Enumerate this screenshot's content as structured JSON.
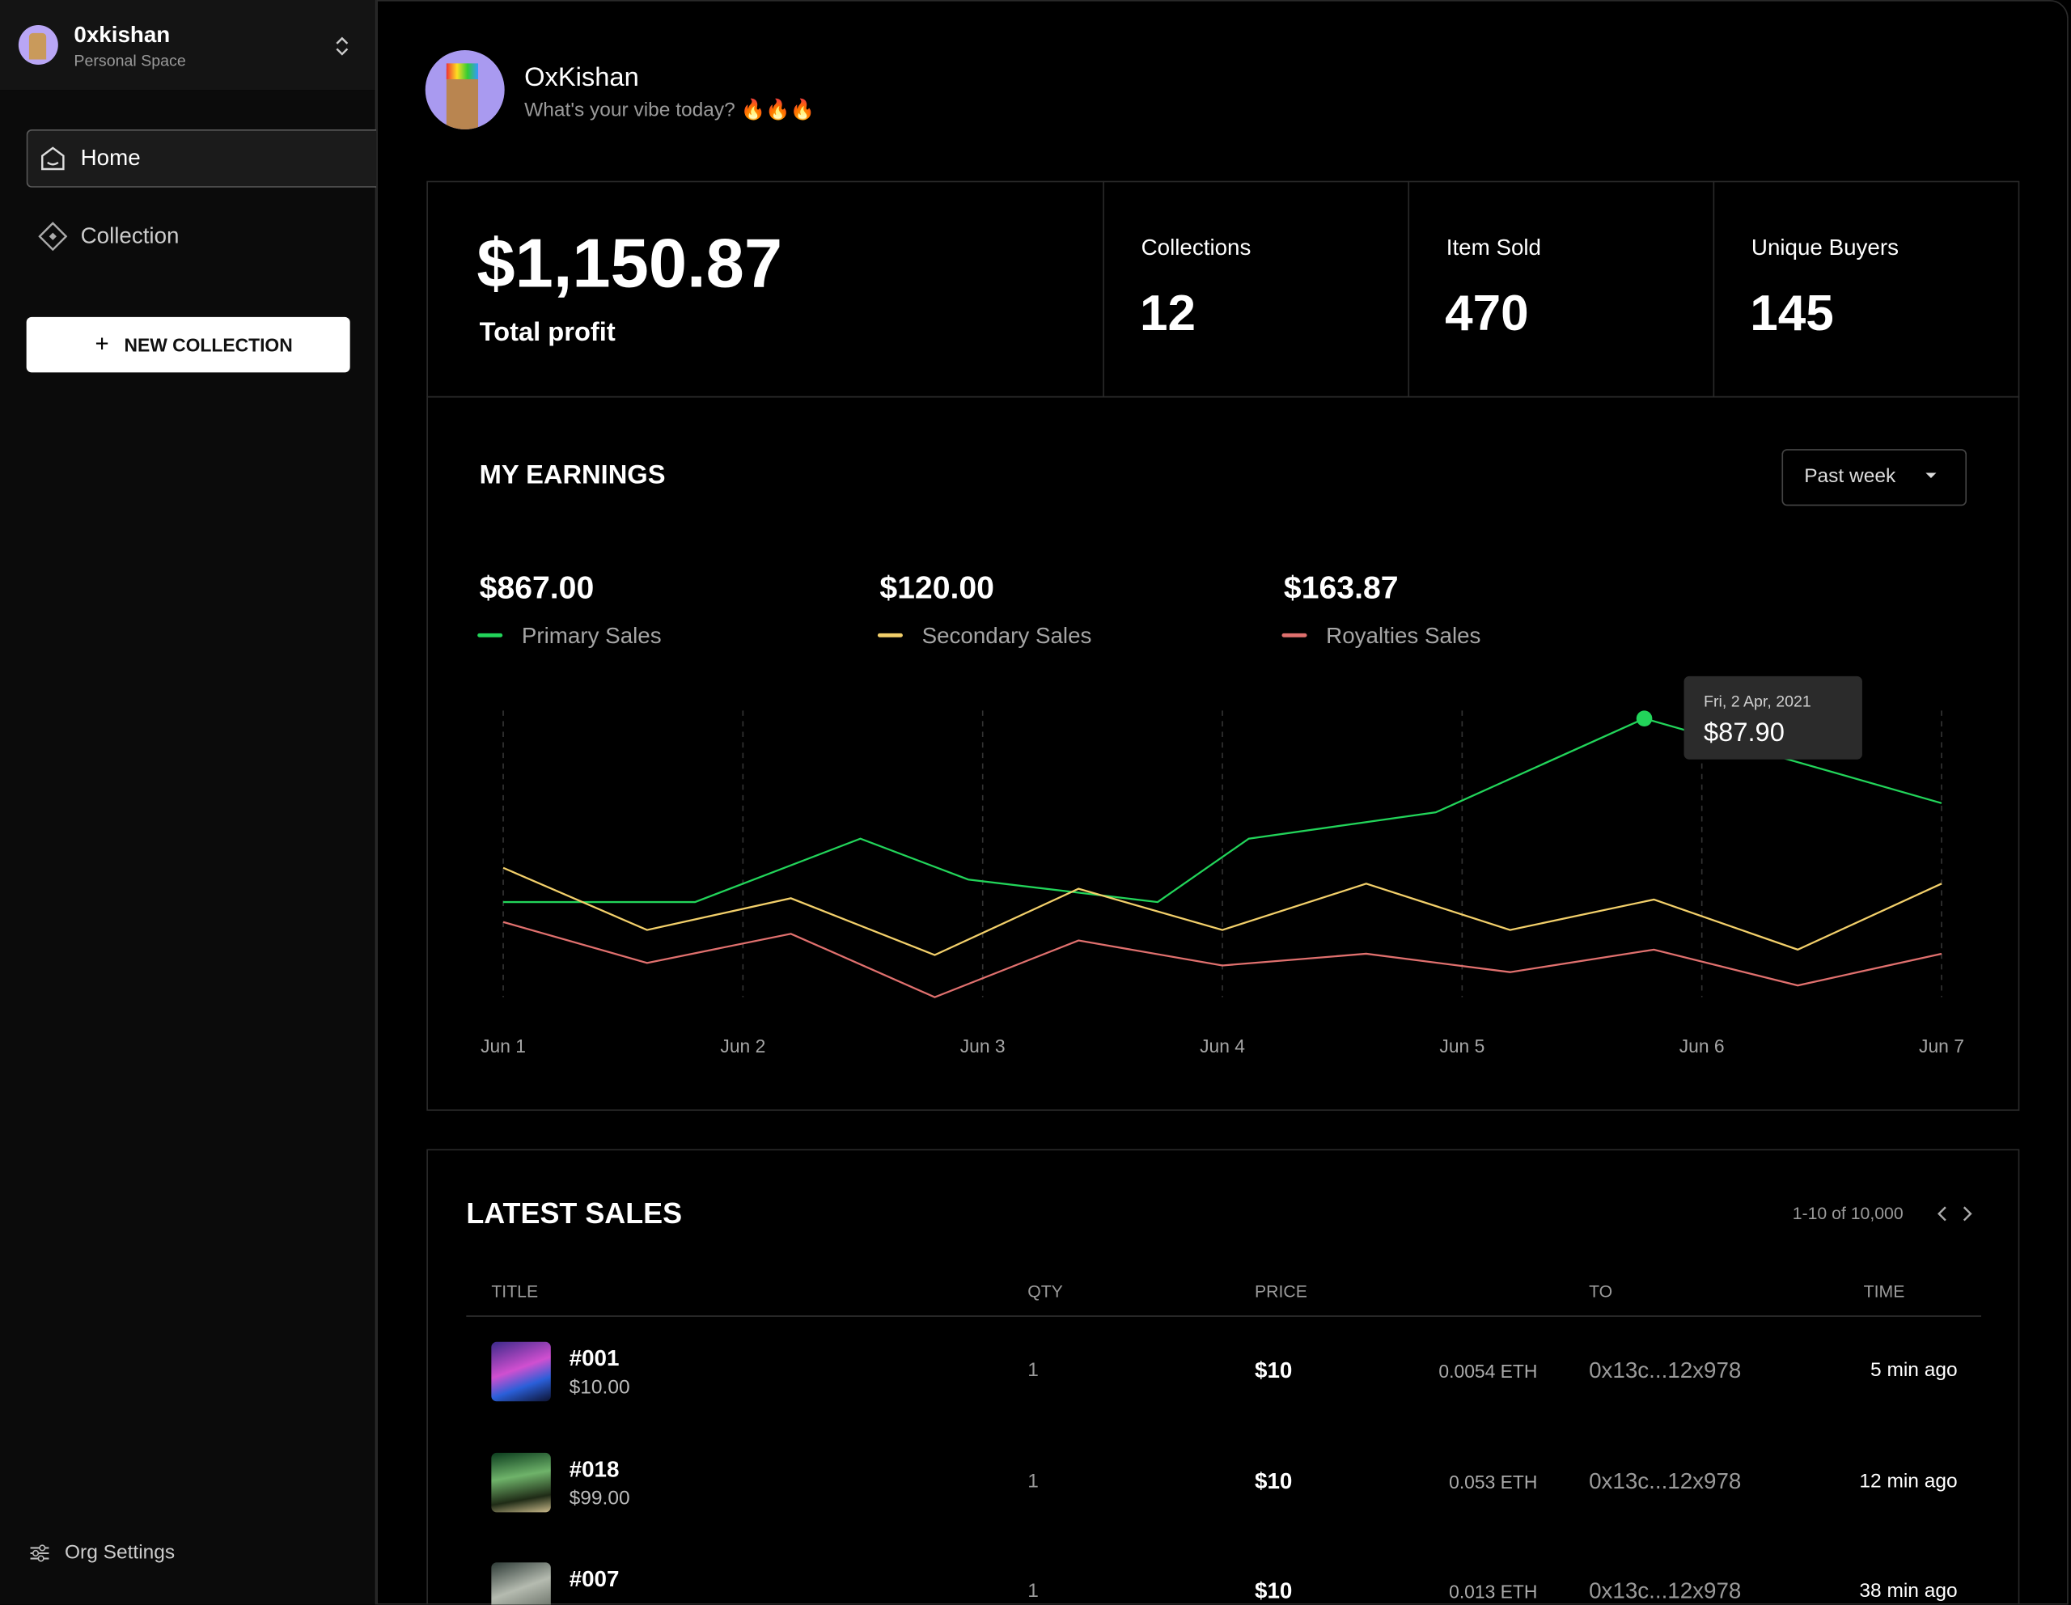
{
  "sidebar": {
    "workspace": {
      "name": "0xkishan",
      "subtitle": "Personal Space"
    },
    "nav": [
      "Home",
      "Collection"
    ],
    "button": "NEW COLLECTION",
    "settings": "Org Settings"
  },
  "profile": {
    "name": "OxKishan",
    "status": "What's your vibe today? 🔥🔥🔥"
  },
  "stats": {
    "total": {
      "value": "$1,150.87",
      "label": "Total profit"
    },
    "cards": [
      {
        "label": "Collections",
        "value": "12"
      },
      {
        "label": "Item Sold",
        "value": "470"
      },
      {
        "label": "Unique Buyers",
        "value": "145"
      }
    ]
  },
  "earnings": {
    "title": "MY EARNINGS",
    "period": "Past week",
    "chart_data": {
      "type": "line",
      "series": [
        {
          "name": "Primary Sales",
          "total": "$867.00",
          "color": "#22d45a",
          "x": [
            1,
            1.8,
            2.49,
            2.94,
            3.73,
            4.11,
            4.89,
            5.76,
            7
          ],
          "values": [
            30,
            30,
            50,
            37.1,
            30,
            50,
            58.3,
            87.9,
            61.2
          ]
        },
        {
          "name": "Secondary Sales",
          "total": "$120.00",
          "color": "#f2cf6a",
          "x": [
            1,
            1.6,
            2.2,
            2.8,
            3.4,
            4,
            4.6,
            5.2,
            5.8,
            6.4,
            7
          ],
          "values": [
            40.8,
            21.2,
            31.2,
            13.3,
            34.2,
            21.2,
            35.8,
            21.2,
            30.8,
            15,
            35.8
          ]
        },
        {
          "name": "Royalties Sales",
          "total": "$163.87",
          "color": "#e0706e",
          "x": [
            1,
            1.6,
            2.2,
            2.8,
            3.4,
            4,
            4.6,
            5.2,
            5.8,
            6.4,
            7
          ],
          "values": [
            23.7,
            10.8,
            20,
            0,
            17.9,
            10,
            13.7,
            7.9,
            15,
            3.7,
            13.7
          ]
        }
      ],
      "xticks": [
        {
          "value": 1,
          "label": "Jun 1"
        },
        {
          "value": 2,
          "label": "Jun 2"
        },
        {
          "value": 3,
          "label": "Jun 3"
        },
        {
          "value": 4,
          "label": "Jun 4"
        },
        {
          "value": 5,
          "label": "Jun 5"
        },
        {
          "value": 6,
          "label": "Jun 6"
        },
        {
          "value": 7,
          "label": "Jun 7"
        }
      ],
      "grid": true,
      "tooltip": {
        "title": "Fri, 2 Apr, 2021",
        "label": "$87.90"
      }
    }
  },
  "sales": {
    "title": "LATEST SALES",
    "pagination": "1-10 of 10,000",
    "columns": [
      "TITLE",
      "QTY",
      "PRICE",
      "TO",
      "TIME"
    ],
    "rows": [
      {
        "title": "#001",
        "subtitle": "$10.00",
        "qty": "1",
        "price": "$10",
        "eth": "0.0054 ETH",
        "to": "0x13c...12x978",
        "time": "5 min ago"
      },
      {
        "title": "#018",
        "subtitle": "$99.00",
        "qty": "1",
        "price": "$10",
        "eth": "0.053 ETH",
        "to": "0x13c...12x978",
        "time": "12 min ago"
      },
      {
        "title": "#007",
        "qty": "1",
        "price": "$10",
        "eth": "0.013 ETH",
        "to": "0x13c...12x978",
        "time": "38 min ago"
      }
    ]
  }
}
